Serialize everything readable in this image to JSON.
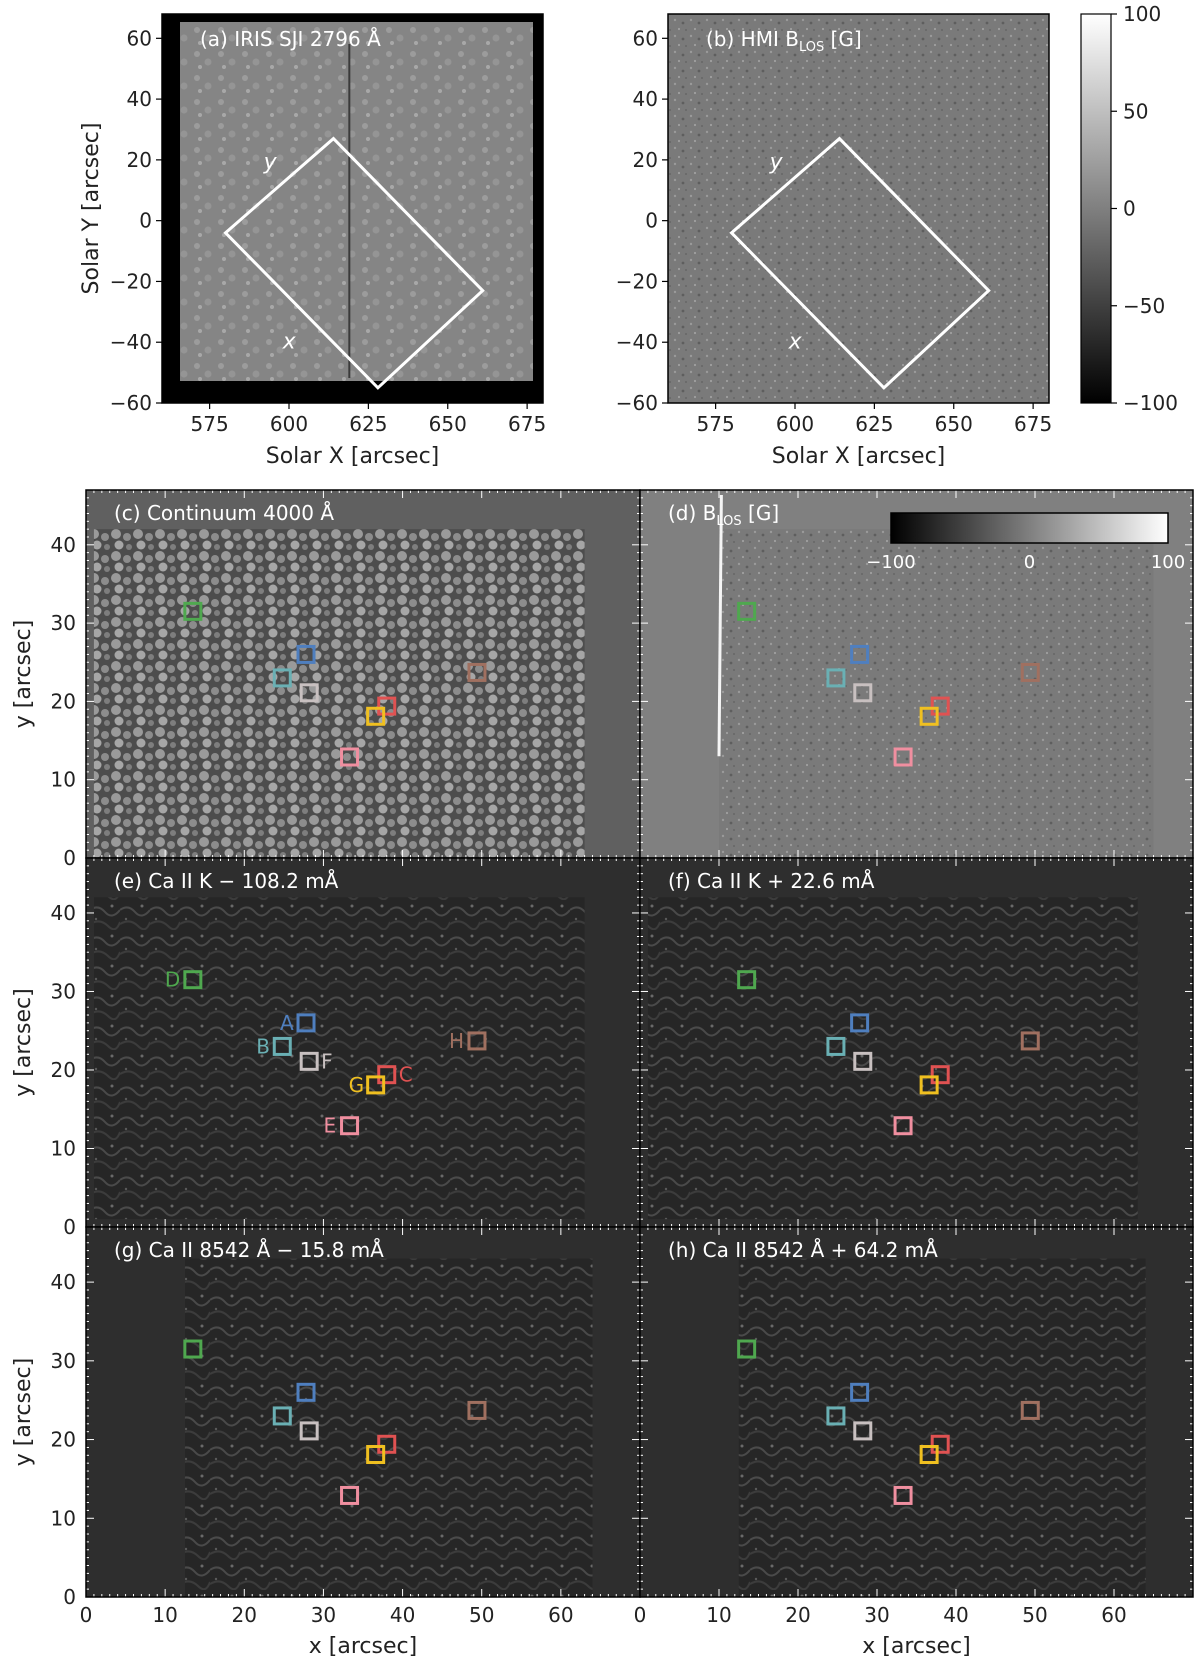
{
  "top_panels": [
    {
      "id": "a",
      "title_pre": "(a) IRIS SJI 2796 Å",
      "title_sub": "",
      "title_post": "",
      "xlabel": "Solar X [arcsec]",
      "ylabel": "Solar Y [arcsec]",
      "xlim": [
        560,
        680
      ],
      "ylim": [
        -60,
        68
      ],
      "xticks": [
        575,
        600,
        625,
        650,
        675
      ],
      "yticks": [
        -60,
        -40,
        -20,
        0,
        20,
        40,
        60
      ],
      "fov_box": [
        [
          614,
          27
        ],
        [
          661,
          -23
        ],
        [
          628,
          -55
        ],
        [
          580,
          -4
        ]
      ],
      "axis_y_label": "y",
      "axis_x_label": "x",
      "background": "#8a8a8a"
    },
    {
      "id": "b",
      "title_pre": "(b) HMI B",
      "title_sub": "LOS",
      "title_post": " [G]",
      "xlabel": "Solar X [arcsec]",
      "ylabel": "",
      "xlim": [
        560,
        680
      ],
      "ylim": [
        -60,
        68
      ],
      "xticks": [
        575,
        600,
        625,
        650,
        675
      ],
      "yticks": [
        -60,
        -40,
        -20,
        0,
        20,
        40,
        60
      ],
      "fov_box": [
        [
          614,
          27
        ],
        [
          661,
          -23
        ],
        [
          628,
          -55
        ],
        [
          580,
          -4
        ]
      ],
      "axis_y_label": "y",
      "axis_x_label": "x",
      "background": "#7f7f7f"
    }
  ],
  "colorbar_b": {
    "min": -100,
    "max": 100,
    "ticks": [
      100,
      50,
      0,
      -50,
      -100
    ]
  },
  "colorbar_d": {
    "ticks": [
      -100,
      0,
      100
    ]
  },
  "grid_panels": [
    {
      "id": "c",
      "title_pre": "(c) Continuum 4000 Å",
      "title_sub": "",
      "title_post": "",
      "fill": "#606060",
      "data_fill": "#4a4a4a",
      "data_x": [
        1,
        63
      ],
      "data_y": [
        0,
        42
      ]
    },
    {
      "id": "d",
      "title_pre": "(d) B",
      "title_sub": "LOS",
      "title_post": " [G]",
      "fill": "#808080",
      "data_fill": "#6e6e6e",
      "data_x": [
        10,
        65
      ],
      "data_y": [
        0,
        42
      ]
    },
    {
      "id": "e",
      "title_pre": "(e) Ca II K  − 108.2 mÅ",
      "title_sub": "",
      "title_post": "",
      "fill": "#2e2e2e",
      "data_fill": "#222222",
      "data_x": [
        1,
        63
      ],
      "data_y": [
        1,
        42
      ]
    },
    {
      "id": "f",
      "title_pre": "(f) Ca II K  + 22.6 mÅ",
      "title_sub": "",
      "title_post": "",
      "fill": "#2e2e2e",
      "data_fill": "#232323",
      "data_x": [
        1,
        63
      ],
      "data_y": [
        1,
        42
      ]
    },
    {
      "id": "g",
      "title_pre": "(g) Ca II 8542 Å  − 15.8 mÅ",
      "title_sub": "",
      "title_post": "",
      "fill": "#2e2e2e",
      "data_fill": "#222222",
      "data_x": [
        12.5,
        64
      ],
      "data_y": [
        0,
        43
      ]
    },
    {
      "id": "h",
      "title_pre": "(h) Ca II 8542 Å  + 64.2 mÅ",
      "title_sub": "",
      "title_post": "",
      "fill": "#2e2e2e",
      "data_fill": "#222222",
      "data_x": [
        12.5,
        64
      ],
      "data_y": [
        0,
        43
      ]
    }
  ],
  "grid_axes": {
    "xlabel": "x [arcsec]",
    "ylabel": "y [arcsec]",
    "xlim": [
      0,
      70
    ],
    "ylim": [
      0,
      47
    ],
    "xticks": [
      0,
      10,
      20,
      30,
      40,
      50,
      60
    ],
    "yticks": [
      0,
      10,
      20,
      30,
      40
    ]
  },
  "markers": [
    {
      "label": "A",
      "x": 27.8,
      "y": 26.0,
      "color": "#4f7fbf"
    },
    {
      "label": "B",
      "x": 24.8,
      "y": 23.0,
      "color": "#6ab0b4"
    },
    {
      "label": "C",
      "x": 38.0,
      "y": 19.4,
      "color": "#e05252"
    },
    {
      "label": "D",
      "x": 13.5,
      "y": 31.5,
      "color": "#4fa84f"
    },
    {
      "label": "E",
      "x": 33.3,
      "y": 12.9,
      "color": "#f08fa0"
    },
    {
      "label": "F",
      "x": 28.2,
      "y": 21.1,
      "color": "#c8c0c0"
    },
    {
      "label": "G",
      "x": 36.6,
      "y": 18.1,
      "color": "#f0c020"
    },
    {
      "label": "H",
      "x": 49.4,
      "y": 23.7,
      "color": "#a07060"
    }
  ],
  "label_panel": "e"
}
